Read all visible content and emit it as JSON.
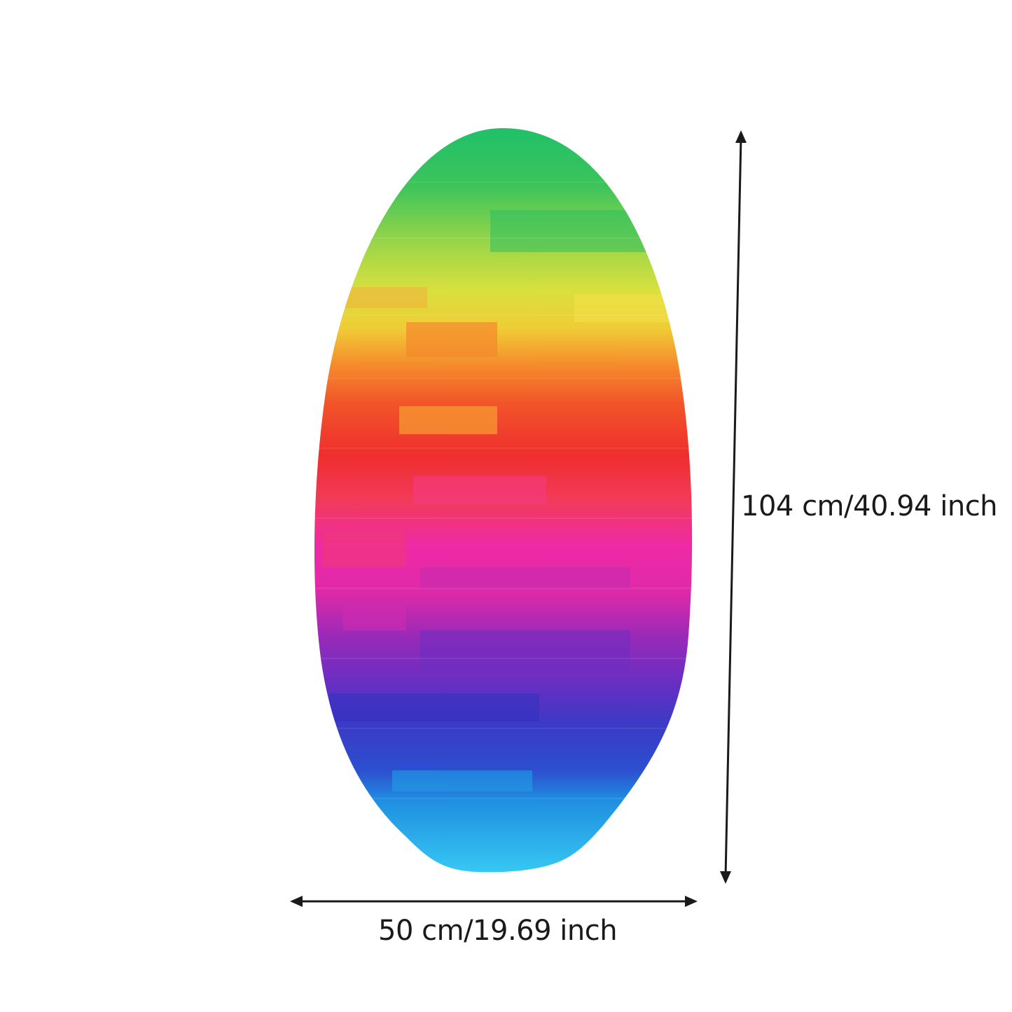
{
  "image": {
    "subject": "skimboard-icon",
    "colors": {
      "background": "#ffffff",
      "stripes": [
        "#1fc06a",
        "#58c84a",
        "#c9e04a",
        "#f2dc3c",
        "#f7a52a",
        "#f2542a",
        "#ef2e2e",
        "#f23a6a",
        "#ee2aa6",
        "#c72aa8",
        "#7a2ac0",
        "#4a35c2",
        "#2c4fd0",
        "#1fa0e8",
        "#34c8f2"
      ],
      "dimension_lines": "#1a1a1a"
    }
  },
  "dimensions": {
    "height_label": "104 cm/40.94 inch",
    "width_label": "50 cm/19.69 inch"
  }
}
